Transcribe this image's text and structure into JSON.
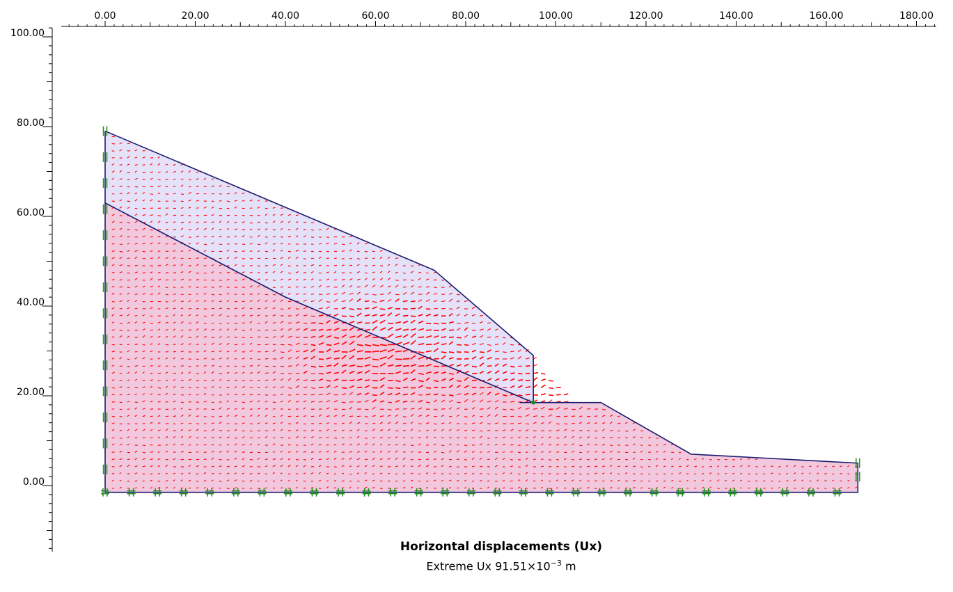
{
  "axes": {
    "x_ticks": [
      "0.00",
      "20.00",
      "40.00",
      "60.00",
      "80.00",
      "100.00",
      "120.00",
      "140.00",
      "160.00",
      "180.00"
    ],
    "y_ticks": [
      "100.00",
      "80.00",
      "60.00",
      "40.00",
      "20.00",
      "0.00"
    ]
  },
  "caption": {
    "title": "Horizontal displacements (Ux)",
    "extreme_prefix": "Extreme Ux 91.51×10",
    "extreme_exponent": "−3",
    "extreme_unit": " m"
  },
  "colors": {
    "upper_layer_fill": "#e4e1f8",
    "lower_layer_fill": "#f2c8de",
    "boundary_lines": "#1a1a6e",
    "displacement_arrows": "#ff0000",
    "fixities": "#1e8c1e"
  },
  "geometry_data": {
    "surface": [
      [
        0,
        79
      ],
      [
        73,
        48
      ],
      [
        95,
        29
      ],
      [
        95,
        18.5
      ],
      [
        110,
        18.5
      ],
      [
        130,
        7
      ],
      [
        167,
        5
      ],
      [
        167,
        -1.5
      ],
      [
        0,
        -1.5
      ]
    ],
    "layer_boundary": [
      [
        0,
        63
      ],
      [
        40,
        42
      ],
      [
        95,
        18.5
      ]
    ],
    "extreme_ux_m": 0.09151
  }
}
